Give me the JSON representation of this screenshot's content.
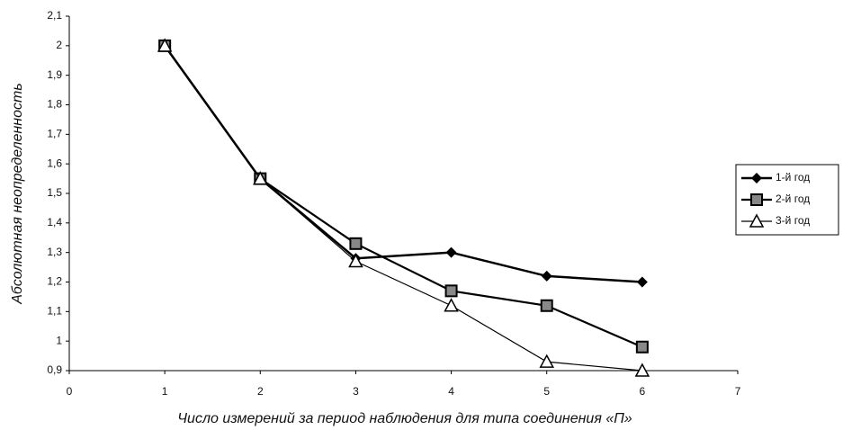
{
  "chart_data": {
    "type": "line",
    "x_label": "Число измерений за период наблюдения для типа соединения «П»",
    "y_label": "Абсолютная неопределенность",
    "x": [
      1,
      2,
      3,
      4,
      5,
      6
    ],
    "series": [
      {
        "name": "1-й год",
        "color": "#000000",
        "marker": "diamond",
        "values": [
          2.0,
          1.55,
          1.28,
          1.3,
          1.22,
          1.2
        ]
      },
      {
        "name": "2-й год",
        "color": "#000000",
        "marker": "square",
        "values": [
          2.0,
          1.55,
          1.33,
          1.17,
          1.12,
          0.98
        ]
      },
      {
        "name": "3-й год",
        "color": "#000000",
        "marker": "triangle",
        "values": [
          2.0,
          1.55,
          1.27,
          1.12,
          0.93,
          0.9
        ]
      }
    ],
    "xlim": [
      0,
      7
    ],
    "xticks": [
      0,
      1,
      2,
      3,
      4,
      5,
      6,
      7
    ],
    "ylim": [
      0.9,
      2.1
    ],
    "yticks": [
      {
        "value": 0.9,
        "label": "0,9"
      },
      1,
      {
        "value": 1.1,
        "label": "1,1"
      },
      {
        "value": 1.2,
        "label": "1,2"
      },
      {
        "value": 1.3,
        "label": "1,3"
      },
      {
        "value": 1.4,
        "label": "1,4"
      },
      {
        "value": 1.5,
        "label": "1,5"
      },
      {
        "value": 1.6,
        "label": "1,6"
      },
      {
        "value": 1.7,
        "label": "1,7"
      },
      {
        "value": 1.8,
        "label": "1,8"
      },
      {
        "value": 1.9,
        "label": "1,9"
      },
      2,
      {
        "value": 2.1,
        "label": "2,1"
      }
    ],
    "legend": "right",
    "grid": false
  }
}
